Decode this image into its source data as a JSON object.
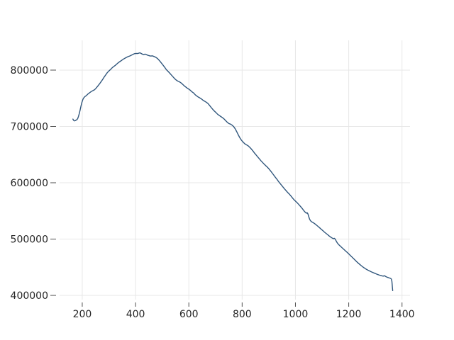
{
  "figure": {
    "background": "#ffffff"
  },
  "chart_data": {
    "type": "line",
    "title": "",
    "xlabel": "",
    "ylabel": "",
    "grid": true,
    "legend_position": "none",
    "xlim": [
      115,
      1430
    ],
    "ylim": [
      392500,
      852800
    ],
    "xticks": [
      200,
      400,
      600,
      800,
      1000,
      1200,
      1400
    ],
    "xtick_labels": [
      "200",
      "400",
      "600",
      "800",
      "1000",
      "1200",
      "1400"
    ],
    "yticks": [
      400000,
      500000,
      600000,
      700000,
      800000
    ],
    "ytick_labels": [
      "400000",
      "500000",
      "600000",
      "700000",
      "800000"
    ],
    "colors": {
      "line": "#30567c",
      "grid": "#e7e7e7",
      "tick": "#4d4d4d",
      "label": "#262626",
      "background": "#ffffff"
    },
    "series": [
      {
        "name": "series-1",
        "color": "#30567c",
        "points": [
          [
            165,
            713000
          ],
          [
            168,
            710600
          ],
          [
            171,
            709800
          ],
          [
            174,
            710400
          ],
          [
            177,
            711300
          ],
          [
            180,
            712000
          ],
          [
            183,
            714000
          ],
          [
            186,
            718000
          ],
          [
            189,
            723000
          ],
          [
            192,
            729000
          ],
          [
            195,
            735500
          ],
          [
            198,
            741500
          ],
          [
            201,
            746000
          ],
          [
            204,
            749500
          ],
          [
            207,
            751500
          ],
          [
            210,
            753000
          ],
          [
            213,
            754000
          ],
          [
            216,
            755000
          ],
          [
            219,
            756500
          ],
          [
            222,
            757800
          ],
          [
            225,
            758800
          ],
          [
            228,
            760000
          ],
          [
            234,
            762000
          ],
          [
            240,
            763600
          ],
          [
            246,
            765000
          ],
          [
            252,
            768000
          ],
          [
            258,
            771500
          ],
          [
            264,
            775000
          ],
          [
            270,
            779000
          ],
          [
            276,
            783000
          ],
          [
            282,
            787500
          ],
          [
            288,
            791500
          ],
          [
            294,
            795500
          ],
          [
            300,
            798500
          ],
          [
            306,
            801000
          ],
          [
            312,
            804000
          ],
          [
            318,
            806400
          ],
          [
            324,
            808400
          ],
          [
            330,
            811000
          ],
          [
            336,
            813400
          ],
          [
            342,
            815400
          ],
          [
            348,
            817400
          ],
          [
            354,
            819400
          ],
          [
            360,
            821000
          ],
          [
            366,
            822600
          ],
          [
            372,
            824000
          ],
          [
            378,
            825000
          ],
          [
            384,
            826400
          ],
          [
            390,
            827800
          ],
          [
            396,
            829200
          ],
          [
            402,
            829600
          ],
          [
            408,
            829400
          ],
          [
            414,
            830400
          ],
          [
            417,
            830700
          ],
          [
            420,
            829800
          ],
          [
            423,
            829000
          ],
          [
            426,
            828400
          ],
          [
            429,
            827600
          ],
          [
            432,
            827800
          ],
          [
            435,
            828400
          ],
          [
            438,
            828200
          ],
          [
            441,
            827400
          ],
          [
            444,
            826800
          ],
          [
            447,
            826200
          ],
          [
            450,
            825800
          ],
          [
            453,
            825400
          ],
          [
            456,
            825000
          ],
          [
            459,
            825000
          ],
          [
            462,
            825400
          ],
          [
            465,
            825000
          ],
          [
            468,
            824400
          ],
          [
            471,
            823800
          ],
          [
            474,
            823200
          ],
          [
            477,
            822400
          ],
          [
            480,
            821400
          ],
          [
            483,
            820200
          ],
          [
            486,
            818800
          ],
          [
            489,
            817200
          ],
          [
            492,
            815600
          ],
          [
            495,
            813800
          ],
          [
            498,
            812000
          ],
          [
            504,
            808400
          ],
          [
            510,
            804600
          ],
          [
            516,
            800600
          ],
          [
            522,
            797800
          ],
          [
            528,
            794800
          ],
          [
            534,
            791600
          ],
          [
            540,
            788400
          ],
          [
            546,
            785200
          ],
          [
            552,
            782600
          ],
          [
            558,
            780600
          ],
          [
            564,
            779400
          ],
          [
            570,
            777600
          ],
          [
            576,
            775200
          ],
          [
            582,
            772400
          ],
          [
            588,
            770200
          ],
          [
            594,
            768000
          ],
          [
            600,
            766200
          ],
          [
            606,
            764000
          ],
          [
            612,
            761400
          ],
          [
            618,
            759400
          ],
          [
            624,
            756200
          ],
          [
            630,
            754000
          ],
          [
            636,
            752000
          ],
          [
            642,
            750400
          ],
          [
            648,
            748600
          ],
          [
            654,
            746200
          ],
          [
            660,
            744600
          ],
          [
            666,
            742800
          ],
          [
            672,
            740600
          ],
          [
            678,
            737200
          ],
          [
            684,
            733600
          ],
          [
            690,
            730200
          ],
          [
            696,
            727200
          ],
          [
            702,
            724600
          ],
          [
            708,
            721600
          ],
          [
            714,
            719600
          ],
          [
            720,
            717600
          ],
          [
            726,
            715600
          ],
          [
            732,
            713400
          ],
          [
            738,
            710400
          ],
          [
            744,
            707600
          ],
          [
            750,
            705200
          ],
          [
            756,
            704200
          ],
          [
            762,
            702400
          ],
          [
            768,
            699800
          ],
          [
            774,
            695800
          ],
          [
            780,
            690400
          ],
          [
            786,
            684600
          ],
          [
            792,
            679400
          ],
          [
            798,
            675200
          ],
          [
            804,
            672000
          ],
          [
            810,
            669200
          ],
          [
            816,
            667400
          ],
          [
            822,
            665800
          ],
          [
            828,
            663200
          ],
          [
            834,
            660200
          ],
          [
            840,
            656800
          ],
          [
            846,
            653000
          ],
          [
            852,
            649600
          ],
          [
            858,
            646200
          ],
          [
            864,
            642800
          ],
          [
            870,
            639400
          ],
          [
            876,
            636400
          ],
          [
            882,
            633400
          ],
          [
            888,
            630600
          ],
          [
            894,
            628000
          ],
          [
            900,
            625000
          ],
          [
            906,
            621400
          ],
          [
            912,
            617800
          ],
          [
            918,
            614000
          ],
          [
            924,
            610200
          ],
          [
            930,
            606600
          ],
          [
            936,
            602600
          ],
          [
            942,
            599000
          ],
          [
            948,
            595600
          ],
          [
            954,
            592000
          ],
          [
            960,
            588600
          ],
          [
            966,
            585400
          ],
          [
            972,
            582200
          ],
          [
            978,
            579400
          ],
          [
            984,
            576000
          ],
          [
            990,
            572400
          ],
          [
            996,
            569200
          ],
          [
            1002,
            566600
          ],
          [
            1008,
            563800
          ],
          [
            1014,
            560600
          ],
          [
            1020,
            557400
          ],
          [
            1026,
            554000
          ],
          [
            1032,
            550200
          ],
          [
            1037,
            547600
          ],
          [
            1041,
            546000
          ],
          [
            1044,
            546800
          ],
          [
            1047,
            544600
          ],
          [
            1050,
            539800
          ],
          [
            1053,
            535600
          ],
          [
            1056,
            533000
          ],
          [
            1059,
            531400
          ],
          [
            1062,
            530400
          ],
          [
            1066,
            529400
          ],
          [
            1072,
            527400
          ],
          [
            1078,
            525200
          ],
          [
            1084,
            522800
          ],
          [
            1090,
            520400
          ],
          [
            1096,
            517800
          ],
          [
            1102,
            515400
          ],
          [
            1108,
            512800
          ],
          [
            1114,
            510400
          ],
          [
            1120,
            508200
          ],
          [
            1126,
            505800
          ],
          [
            1132,
            503600
          ],
          [
            1138,
            501800
          ],
          [
            1143,
            500600
          ],
          [
            1146,
            501400
          ],
          [
            1149,
            500000
          ],
          [
            1152,
            497400
          ],
          [
            1155,
            494800
          ],
          [
            1158,
            492600
          ],
          [
            1164,
            489400
          ],
          [
            1170,
            486800
          ],
          [
            1176,
            484200
          ],
          [
            1182,
            481600
          ],
          [
            1188,
            479000
          ],
          [
            1194,
            476400
          ],
          [
            1200,
            473800
          ],
          [
            1206,
            471000
          ],
          [
            1212,
            468200
          ],
          [
            1218,
            465400
          ],
          [
            1224,
            462600
          ],
          [
            1230,
            459800
          ],
          [
            1236,
            457200
          ],
          [
            1242,
            454800
          ],
          [
            1248,
            452400
          ],
          [
            1254,
            450200
          ],
          [
            1260,
            448200
          ],
          [
            1266,
            446400
          ],
          [
            1272,
            444800
          ],
          [
            1278,
            443400
          ],
          [
            1284,
            442000
          ],
          [
            1290,
            440800
          ],
          [
            1296,
            439600
          ],
          [
            1302,
            438400
          ],
          [
            1308,
            437200
          ],
          [
            1314,
            436200
          ],
          [
            1320,
            435400
          ],
          [
            1326,
            434600
          ],
          [
            1330,
            434200
          ],
          [
            1333,
            435000
          ],
          [
            1336,
            434400
          ],
          [
            1340,
            433200
          ],
          [
            1346,
            432000
          ],
          [
            1352,
            431000
          ],
          [
            1357,
            430200
          ],
          [
            1360,
            429000
          ],
          [
            1362,
            425000
          ],
          [
            1363,
            419500
          ],
          [
            1364,
            413500
          ],
          [
            1365,
            408500
          ]
        ]
      }
    ]
  }
}
